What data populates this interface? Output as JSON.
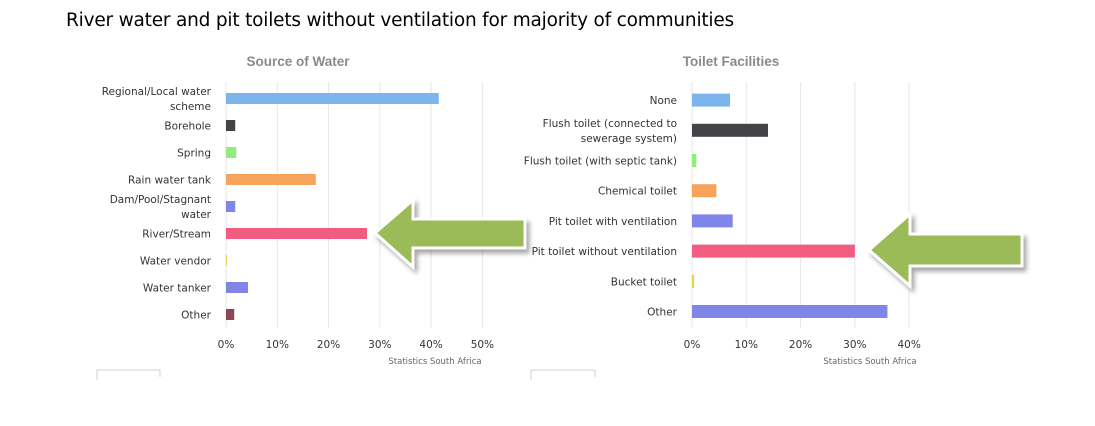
{
  "slide": {
    "title": "River water and pit toilets without ventilation for majority of communities"
  },
  "chart_data": [
    {
      "type": "bar",
      "orientation": "horizontal",
      "title": "Source of Water",
      "credit": "Statistics South Africa",
      "categories": [
        [
          "Regional/Local water",
          "scheme"
        ],
        [
          "Borehole"
        ],
        [
          "Spring"
        ],
        [
          "Rain water tank"
        ],
        [
          "Dam/Pool/Stagnant",
          "water"
        ],
        [
          "River/Stream"
        ],
        [
          "Water vendor"
        ],
        [
          "Water tanker"
        ],
        [
          "Other"
        ]
      ],
      "values": [
        41.5,
        1.8,
        2.0,
        17.5,
        1.8,
        27.5,
        0.2,
        4.3,
        1.6
      ],
      "colors": [
        "#7cb5ec",
        "#434348",
        "#90ed7d",
        "#f7a35c",
        "#8085e9",
        "#f15c80",
        "#e4d354",
        "#8085e8",
        "#8d4653"
      ],
      "xlim": [
        0,
        55
      ],
      "ticks": [
        0,
        10,
        20,
        30,
        40,
        50
      ],
      "tick_labels": [
        "0%",
        "10%",
        "20%",
        "30%",
        "40%",
        "50%"
      ],
      "grid": true,
      "highlight": "River/Stream"
    },
    {
      "type": "bar",
      "orientation": "horizontal",
      "title": "Toilet Facilities",
      "credit": "Statistics South Africa",
      "categories": [
        [
          "None"
        ],
        [
          "Flush toilet (connected to",
          "sewerage system)"
        ],
        [
          "Flush toilet (with septic tank)"
        ],
        [
          "Chemical toilet"
        ],
        [
          "Pit toilet with ventilation"
        ],
        [
          "Pit toilet without ventilation"
        ],
        [
          "Bucket toilet"
        ],
        [
          "Other"
        ]
      ],
      "values": [
        7.0,
        14.0,
        0.8,
        4.5,
        7.5,
        30.0,
        0.4,
        36.0
      ],
      "colors": [
        "#7cb5ec",
        "#434348",
        "#90ed7d",
        "#f7a35c",
        "#8085e9",
        "#f15c80",
        "#e4d354",
        "#8085e8"
      ],
      "xlim": [
        0,
        42
      ],
      "ticks": [
        0,
        10,
        20,
        30,
        40
      ],
      "tick_labels": [
        "0%",
        "10%",
        "20%",
        "30%",
        "40%"
      ],
      "grid": true,
      "highlight": "Pit toilet without ventilation"
    }
  ],
  "annotations": {
    "arrow_color": "#9bbb59",
    "arrow_outline": "#ffffff"
  }
}
